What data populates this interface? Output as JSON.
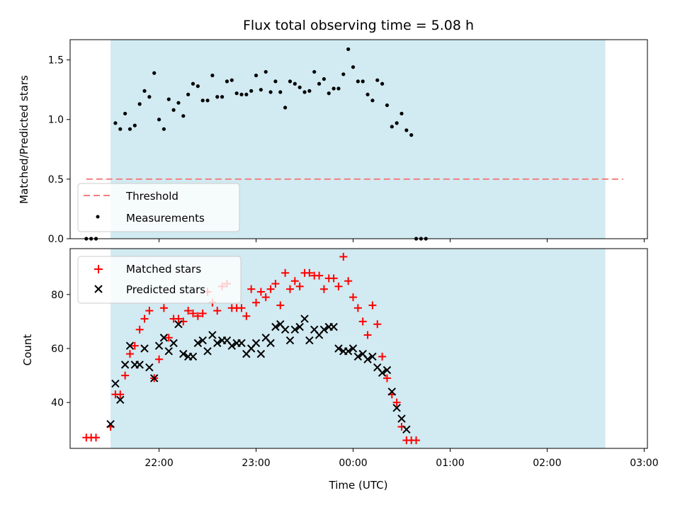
{
  "chart_data": [
    {
      "type": "scatter",
      "title": "Flux total observing time = 5.08 h",
      "ylabel": "Matched/Predicted stars",
      "ylim": [
        0,
        1.67
      ],
      "yticks": [
        "0.0",
        "0.5",
        "1.0",
        "1.5"
      ],
      "ytick_values": [
        0,
        0.5,
        1.0,
        1.5
      ],
      "shaded_region": {
        "x_start": "21:30",
        "x_end": "02:36",
        "color": "#add8e6"
      },
      "threshold": {
        "name": "Threshold",
        "value": 0.5,
        "x_start": "21:15",
        "x_end": "02:47",
        "color": "#f08080"
      },
      "legend": {
        "position": "lower-left",
        "entries": [
          "Threshold",
          "Measurements"
        ]
      },
      "series": [
        {
          "name": "Measurements",
          "color": "#000000",
          "x": [
            "21:15",
            "21:18",
            "21:21",
            "21:30",
            "21:33",
            "21:36",
            "21:39",
            "21:42",
            "21:45",
            "21:48",
            "21:51",
            "21:54",
            "21:57",
            "22:00",
            "22:03",
            "22:06",
            "22:09",
            "22:12",
            "22:15",
            "22:18",
            "22:21",
            "22:24",
            "22:27",
            "22:30",
            "22:33",
            "22:36",
            "22:39",
            "22:42",
            "22:45",
            "22:48",
            "22:51",
            "22:54",
            "22:57",
            "23:00",
            "23:03",
            "23:06",
            "23:09",
            "23:12",
            "23:15",
            "23:18",
            "23:21",
            "23:24",
            "23:27",
            "23:30",
            "23:33",
            "23:36",
            "23:39",
            "23:42",
            "23:45",
            "23:48",
            "23:51",
            "23:54",
            "23:57",
            "00:00",
            "00:03",
            "00:06",
            "00:09",
            "00:12",
            "00:15",
            "00:18",
            "00:21",
            "00:24",
            "00:27",
            "00:30",
            "00:33",
            "00:36",
            "00:39",
            "00:42",
            "00:45",
            "00:48",
            "00:51",
            "00:54",
            "00:57",
            "01:00",
            "01:03",
            "01:06",
            "01:09",
            "01:12",
            "01:15",
            "01:18",
            "01:21",
            "01:24",
            "01:27",
            "01:30",
            "01:33",
            "01:36",
            "01:39",
            "01:42",
            "01:45",
            "01:48",
            "01:51",
            "01:54",
            "01:57",
            "02:00",
            "02:03",
            "02:06",
            "02:09",
            "02:12",
            "02:15",
            "02:18",
            "02:21",
            "02:24",
            "02:27",
            "02:30",
            "02:33",
            "02:36",
            "02:39",
            "02:42",
            "02:45"
          ],
          "y": [
            0,
            0,
            0,
            null,
            0.97,
            0.92,
            1.05,
            0.92,
            0.95,
            1.13,
            1.24,
            1.19,
            1.39,
            1.0,
            0.92,
            1.17,
            1.08,
            1.14,
            1.03,
            1.21,
            1.3,
            1.28,
            1.16,
            1.16,
            1.37,
            1.19,
            1.19,
            1.32,
            1.33,
            1.22,
            1.21,
            1.21,
            1.24,
            1.37,
            1.25,
            1.4,
            1.23,
            1.32,
            1.23,
            1.1,
            1.32,
            1.3,
            1.27,
            1.23,
            1.24,
            1.4,
            1.3,
            1.34,
            1.22,
            1.26,
            1.26,
            1.38,
            1.59,
            1.44,
            1.32,
            1.32,
            1.21,
            1.16,
            1.33,
            1.3,
            1.12,
            0.94,
            0.97,
            1.05,
            0.91,
            0.87,
            0,
            0,
            0,
            null,
            null,
            null,
            null,
            null,
            null,
            null,
            null,
            null,
            null,
            null,
            null,
            null,
            null,
            null,
            null,
            null,
            null,
            null,
            null,
            null,
            null,
            null,
            null,
            null,
            null,
            null,
            null,
            null,
            null,
            null,
            null,
            null,
            null,
            null,
            null,
            null,
            null,
            null,
            null
          ]
        }
      ]
    },
    {
      "type": "scatter",
      "xlabel": "Time (UTC)",
      "ylabel": "Count",
      "ylim": [
        23,
        97
      ],
      "yticks": [
        "40",
        "60",
        "80"
      ],
      "ytick_values": [
        40,
        60,
        80
      ],
      "xticks": [
        "22:00",
        "23:00",
        "00:00",
        "01:00",
        "02:00",
        "03:00"
      ],
      "xlim": [
        "21:05",
        "03:02"
      ],
      "shaded_region": {
        "x_start": "21:30",
        "x_end": "02:36",
        "color": "#add8e6"
      },
      "legend": {
        "position": "upper-left",
        "entries": [
          "Matched stars",
          "Predicted stars"
        ]
      },
      "series": [
        {
          "name": "Matched stars",
          "color": "#ff0000",
          "marker": "plus",
          "points": [
            [
              "21:15",
              27
            ],
            [
              "21:18",
              27
            ],
            [
              "21:21",
              27
            ],
            [
              "21:30",
              31
            ],
            [
              "21:33",
              43
            ],
            [
              "21:36",
              43
            ],
            [
              "21:39",
              50
            ],
            [
              "21:42",
              58
            ],
            [
              "21:45",
              61
            ],
            [
              "21:48",
              67
            ],
            [
              "21:51",
              71
            ],
            [
              "21:54",
              74
            ],
            [
              "21:57",
              49
            ],
            [
              "22:00",
              56
            ],
            [
              "22:03",
              75
            ],
            [
              "22:06",
              64
            ],
            [
              "22:09",
              71
            ],
            [
              "22:12",
              71
            ],
            [
              "22:15",
              70
            ],
            [
              "22:18",
              74
            ],
            [
              "22:21",
              73
            ],
            [
              "22:24",
              72
            ],
            [
              "22:27",
              73
            ],
            [
              "22:30",
              81
            ],
            [
              "22:33",
              77
            ],
            [
              "22:36",
              74
            ],
            [
              "22:39",
              83
            ],
            [
              "22:42",
              84
            ],
            [
              "22:45",
              75
            ],
            [
              "22:48",
              75
            ],
            [
              "22:51",
              75
            ],
            [
              "22:54",
              72
            ],
            [
              "22:57",
              82
            ],
            [
              "23:00",
              77
            ],
            [
              "23:03",
              81
            ],
            [
              "23:06",
              79
            ],
            [
              "23:09",
              82
            ],
            [
              "23:12",
              84
            ],
            [
              "23:15",
              76
            ],
            [
              "23:18",
              88
            ],
            [
              "23:21",
              82
            ],
            [
              "23:24",
              85
            ],
            [
              "23:27",
              83
            ],
            [
              "23:30",
              88
            ],
            [
              "23:33",
              88
            ],
            [
              "23:36",
              87
            ],
            [
              "23:39",
              87
            ],
            [
              "23:42",
              82
            ],
            [
              "23:45",
              86
            ],
            [
              "23:48",
              86
            ],
            [
              "23:51",
              83
            ],
            [
              "23:54",
              94
            ],
            [
              "23:57",
              85
            ],
            [
              "00:00",
              79
            ],
            [
              "00:03",
              75
            ],
            [
              "00:06",
              70
            ],
            [
              "00:09",
              65
            ],
            [
              "00:12",
              76
            ],
            [
              "00:15",
              69
            ],
            [
              "00:18",
              57
            ],
            [
              "00:21",
              49
            ],
            [
              "00:24",
              43
            ],
            [
              "00:27",
              40
            ],
            [
              "00:30",
              31
            ],
            [
              "00:33",
              26
            ],
            [
              "00:36",
              26
            ],
            [
              "00:39",
              26
            ]
          ]
        },
        {
          "name": "Predicted stars",
          "color": "#000000",
          "marker": "x",
          "points": [
            [
              "21:30",
              32
            ],
            [
              "21:33",
              47
            ],
            [
              "21:36",
              41
            ],
            [
              "21:39",
              54
            ],
            [
              "21:42",
              61
            ],
            [
              "21:45",
              54
            ],
            [
              "21:48",
              54
            ],
            [
              "21:51",
              60
            ],
            [
              "21:54",
              53
            ],
            [
              "21:57",
              49
            ],
            [
              "22:00",
              61
            ],
            [
              "22:03",
              64
            ],
            [
              "22:06",
              59
            ],
            [
              "22:09",
              62
            ],
            [
              "22:12",
              69
            ],
            [
              "22:15",
              58
            ],
            [
              "22:18",
              57
            ],
            [
              "22:21",
              57
            ],
            [
              "22:24",
              62
            ],
            [
              "22:27",
              63
            ],
            [
              "22:30",
              59
            ],
            [
              "22:33",
              65
            ],
            [
              "22:36",
              62
            ],
            [
              "22:39",
              63
            ],
            [
              "22:42",
              63
            ],
            [
              "22:45",
              61
            ],
            [
              "22:48",
              62
            ],
            [
              "22:51",
              62
            ],
            [
              "22:54",
              58
            ],
            [
              "22:57",
              60
            ],
            [
              "23:00",
              62
            ],
            [
              "23:03",
              58
            ],
            [
              "23:06",
              64
            ],
            [
              "23:09",
              62
            ],
            [
              "23:12",
              68
            ],
            [
              "23:15",
              69
            ],
            [
              "23:18",
              67
            ],
            [
              "23:21",
              63
            ],
            [
              "23:24",
              67
            ],
            [
              "23:27",
              68
            ],
            [
              "23:30",
              71
            ],
            [
              "23:33",
              63
            ],
            [
              "23:36",
              67
            ],
            [
              "23:39",
              65
            ],
            [
              "23:42",
              67
            ],
            [
              "23:45",
              68
            ],
            [
              "23:48",
              68
            ],
            [
              "23:51",
              60
            ],
            [
              "23:54",
              59
            ],
            [
              "23:57",
              59
            ],
            [
              "00:00",
              60
            ],
            [
              "00:03",
              57
            ],
            [
              "00:06",
              58
            ],
            [
              "00:09",
              56
            ],
            [
              "00:12",
              57
            ],
            [
              "00:15",
              53
            ],
            [
              "00:18",
              51
            ],
            [
              "00:21",
              52
            ],
            [
              "00:24",
              44
            ],
            [
              "00:27",
              38
            ],
            [
              "00:30",
              34
            ],
            [
              "00:33",
              30
            ]
          ]
        }
      ]
    }
  ]
}
